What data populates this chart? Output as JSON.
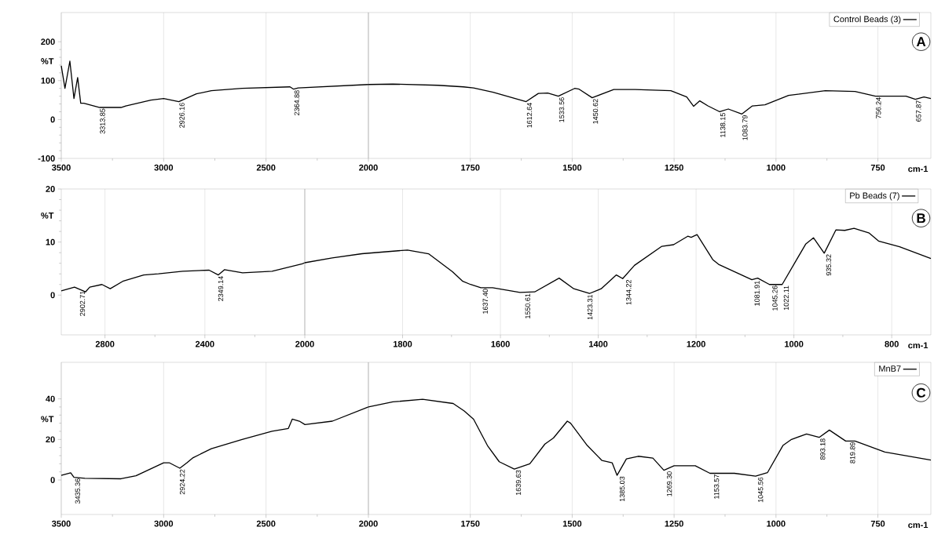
{
  "chart_data": [
    {
      "type": "line",
      "ylabel": "%T",
      "xlim": [
        3500,
        2000
      ],
      "xticks": [
        3500,
        3000,
        2500,
        2000
      ],
      "ylim": [
        -100,
        275
      ],
      "yticks": [
        -100,
        0,
        100,
        200
      ],
      "grid": "x",
      "series": [
        {
          "color": "#000000",
          "x": [
            3500,
            3482,
            3458,
            3438,
            3420,
            3405,
            3390,
            3312,
            3208,
            3185,
            3062,
            3000,
            2926,
            2840,
            2767,
            2617,
            2383,
            2365,
            2343,
            2000
          ],
          "values": [
            138,
            80,
            150,
            54,
            108,
            42,
            42,
            31,
            31,
            35,
            50,
            54,
            46,
            66,
            74,
            80,
            84,
            78,
            81,
            90
          ]
        }
      ],
      "annotations": [
        {
          "text": "3313.85",
          "x": 3313.85,
          "y": 31
        },
        {
          "text": "2926.16",
          "x": 2926.16,
          "y": 46
        },
        {
          "text": "2364.88",
          "x": 2364.88,
          "y": 78
        }
      ]
    },
    {
      "type": "line",
      "xlabel": "cm-1",
      "xlim": [
        2000,
        620
      ],
      "xticks": [
        1750,
        1500,
        1250,
        1000,
        750
      ],
      "ylim": [
        -100,
        275
      ],
      "grid": "x",
      "legend": "top right",
      "tick_labels": "x",
      "series": [
        {
          "name": "Control Beads (3)",
          "color": "#000000",
          "x": [
            2000,
            1940,
            1829,
            1767,
            1742,
            1694,
            1613,
            1583,
            1560,
            1534,
            1494,
            1483,
            1451,
            1398,
            1346,
            1258,
            1219,
            1202,
            1187,
            1167,
            1138,
            1117,
            1084,
            1058,
            1027,
            969,
            879,
            806,
            756,
            681,
            658,
            637,
            620
          ],
          "values": [
            90,
            91,
            88,
            84,
            81,
            70,
            46,
            67,
            68,
            60,
            80,
            78,
            56,
            77,
            77,
            74,
            58,
            34,
            48,
            35,
            20,
            27,
            14,
            35,
            38,
            62,
            74,
            72,
            60,
            60,
            52,
            58,
            54
          ]
        }
      ],
      "annotations": [
        "A",
        {
          "text": "1612.64",
          "x": 1612.64,
          "y": 46
        },
        {
          "text": "1533.56",
          "x": 1533.56,
          "y": 60
        },
        {
          "text": "1450.62",
          "x": 1450.62,
          "y": 56
        },
        {
          "text": "1138.15",
          "x": 1138.15,
          "y": 20
        },
        {
          "text": "1083.79",
          "x": 1083.79,
          "y": 14
        },
        {
          "text": "756.24",
          "x": 756.24,
          "y": 60
        },
        {
          "text": "657.87",
          "x": 657.87,
          "y": 52
        }
      ]
    },
    {
      "type": "line",
      "ylabel": "%T",
      "xlim": [
        2975,
        2000
      ],
      "xticks": [
        2800,
        2400,
        2000
      ],
      "ylim": [
        -7.5,
        20
      ],
      "yticks": [
        0,
        10,
        20
      ],
      "grid": "x",
      "series": [
        {
          "color": "#000000",
          "x": [
            2975,
            2922,
            2878,
            2861,
            2812,
            2779,
            2729,
            2645,
            2586,
            2489,
            2383,
            2346,
            2321,
            2249,
            2131,
            2010,
            2000
          ],
          "values": [
            0.8,
            1.5,
            0.6,
            1.5,
            2,
            1.2,
            2.6,
            3.8,
            4,
            4.5,
            4.7,
            3.8,
            4.8,
            4.2,
            4.5,
            5.9,
            6.1
          ]
        }
      ],
      "annotations": [
        {
          "text": "2902.71",
          "x": 2902.71,
          "y": 1.0
        },
        {
          "text": "2349.14",
          "x": 2349.14,
          "y": 3.8
        }
      ]
    },
    {
      "type": "line",
      "xlabel": "cm-1",
      "xlim": [
        2000,
        720
      ],
      "xticks": [
        1800,
        1600,
        1400,
        1200,
        1000,
        800
      ],
      "ylim": [
        -7.5,
        20
      ],
      "grid": "x",
      "legend": "top right",
      "tick_labels": "x",
      "series": [
        {
          "name": "Pb Beads (7)",
          "color": "#000000",
          "x": [
            2000,
            1944,
            1883,
            1790,
            1747,
            1698,
            1677,
            1661,
            1640,
            1616,
            1560,
            1530,
            1480,
            1450,
            1418,
            1394,
            1363,
            1350,
            1326,
            1270,
            1246,
            1217,
            1210,
            1198,
            1166,
            1154,
            1086,
            1074,
            1050,
            1024,
            976,
            960,
            938,
            914,
            896,
            877,
            846,
            827,
            784,
            720
          ],
          "values": [
            6.1,
            7,
            7.8,
            8.5,
            7.8,
            4.4,
            2.6,
            2,
            1.4,
            1.4,
            0.5,
            0.6,
            3.2,
            1.2,
            0.3,
            1.2,
            3.8,
            3.1,
            5.6,
            9.2,
            9.5,
            11.1,
            10.9,
            11.4,
            6.7,
            5.8,
            2.9,
            3.2,
            2,
            2,
            9.6,
            10.8,
            7.9,
            12.3,
            12.2,
            12.6,
            11.7,
            10.2,
            9.1,
            6.9
          ]
        }
      ],
      "annotations": [
        "B",
        {
          "text": "1637.40",
          "x": 1637.4,
          "y": 1.4
        },
        {
          "text": "1550.61",
          "x": 1550.61,
          "y": 0.5
        },
        {
          "text": "1423.31",
          "x": 1423.31,
          "y": 0.3
        },
        {
          "text": "1344.22",
          "x": 1344.22,
          "y": 3.1
        },
        {
          "text": "1081.91",
          "x": 1081.91,
          "y": 2.9
        },
        {
          "text": "1045.26",
          "x": 1045.26,
          "y": 2
        },
        {
          "text": "1022.11",
          "x": 1022.11,
          "y": 2
        },
        {
          "text": "935.32",
          "x": 935.32,
          "y": 7.9
        }
      ]
    },
    {
      "type": "line",
      "ylabel": "%T",
      "xlim": [
        3500,
        2000
      ],
      "xticks": [
        3500,
        3000,
        2500,
        2000
      ],
      "ylim": [
        -17,
        58
      ],
      "yticks": [
        0,
        20,
        40
      ],
      "grid": "x",
      "series": [
        {
          "color": "#000000",
          "x": [
            3500,
            3454,
            3438,
            3385,
            3208,
            3135,
            3000,
            2973,
            2921,
            2886,
            2856,
            2767,
            2617,
            2471,
            2391,
            2372,
            2337,
            2310,
            2176,
            2000
          ],
          "values": [
            2.3,
            3.5,
            1.3,
            0.8,
            0.6,
            2.1,
            8.5,
            8.5,
            5.8,
            8.5,
            11,
            15.4,
            20,
            24,
            25.4,
            30,
            29,
            27.3,
            29,
            36
          ]
        }
      ],
      "annotations": [
        {
          "text": "3435.36",
          "x": 3435.36,
          "y": 1.3
        },
        {
          "text": "2924.22",
          "x": 2924.22,
          "y": 5.8
        }
      ]
    },
    {
      "type": "line",
      "xlabel": "cm-1",
      "xlim": [
        2000,
        620
      ],
      "xticks": [
        1750,
        1500,
        1250,
        1000,
        750
      ],
      "ylim": [
        -17,
        58
      ],
      "grid": "x",
      "legend": "top right",
      "tick_labels": "x",
      "series": [
        {
          "name": "MnB7",
          "color": "#000000",
          "x": [
            2000,
            1940,
            1867,
            1792,
            1765,
            1742,
            1708,
            1679,
            1642,
            1604,
            1567,
            1546,
            1512,
            1504,
            1463,
            1427,
            1402,
            1390,
            1367,
            1338,
            1302,
            1275,
            1250,
            1198,
            1162,
            1102,
            1050,
            1021,
            983,
            962,
            925,
            894,
            869,
            829,
            806,
            733,
            620
          ],
          "values": [
            36,
            38.5,
            39.8,
            37.7,
            34,
            30,
            17,
            9,
            5.4,
            8,
            17.7,
            20.7,
            29,
            28,
            17,
            9.6,
            8.5,
            2.3,
            10.4,
            11.7,
            10.8,
            4.8,
            7,
            7,
            3.3,
            3.3,
            1.9,
            3.6,
            17,
            20,
            22.7,
            21,
            24.6,
            19.2,
            19.2,
            13.8,
            9.8
          ]
        }
      ],
      "annotations": [
        "C",
        {
          "text": "1639.63",
          "x": 1639.63,
          "y": 5.4
        },
        {
          "text": "1385.03",
          "x": 1385.03,
          "y": 2.3
        },
        {
          "text": "1269.30",
          "x": 1269.3,
          "y": 4.8
        },
        {
          "text": "1153.57",
          "x": 1153.57,
          "y": 3.3
        },
        {
          "text": "1045.56",
          "x": 1045.56,
          "y": 1.9
        },
        {
          "text": "893.18",
          "x": 893.18,
          "y": 21
        },
        {
          "text": "819.89",
          "x": 819.89,
          "y": 19.2
        }
      ]
    }
  ]
}
